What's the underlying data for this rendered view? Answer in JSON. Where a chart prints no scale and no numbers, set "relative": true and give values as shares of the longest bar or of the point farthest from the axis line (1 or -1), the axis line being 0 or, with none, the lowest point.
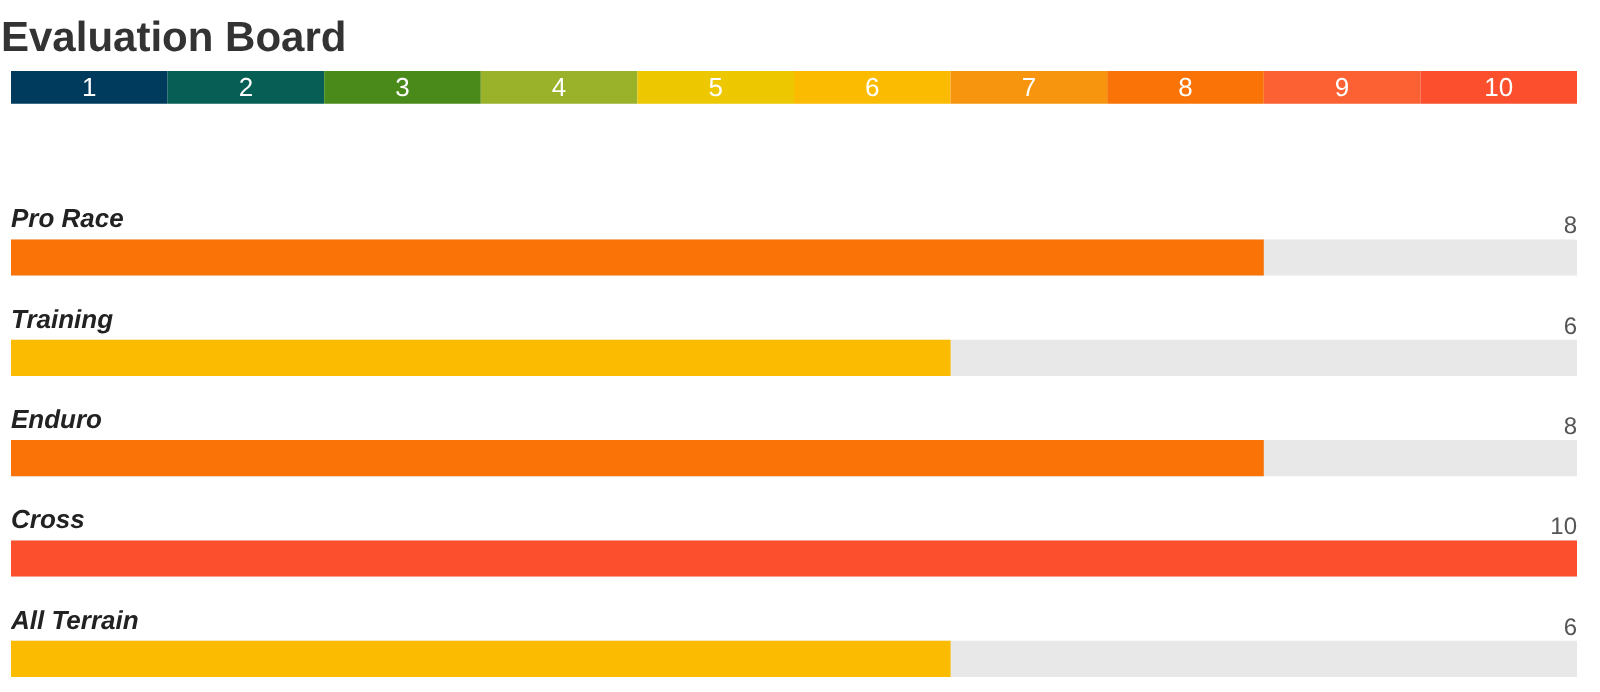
{
  "chart_data": [
    {
      "type": "bar",
      "title": "Evaluation Board",
      "categories": [
        "1",
        "2",
        "3",
        "4",
        "5",
        "6",
        "7",
        "8",
        "9",
        "10"
      ],
      "values": [
        1,
        1,
        1,
        1,
        1,
        1,
        1,
        1,
        1,
        1
      ],
      "relative": true,
      "colors": [
        "#003a5c",
        "#075e55",
        "#4a8a1a",
        "#9ab12a",
        "#edc700",
        "#fbbb00",
        "#f7960e",
        "#f97306",
        "#fb6132",
        "#fb4f2e"
      ]
    },
    {
      "type": "bar",
      "orientation": "horizontal",
      "categories": [
        "Pro Race",
        "Training",
        "Enduro",
        "Cross",
        "All Terrain"
      ],
      "values": [
        8,
        6,
        8,
        10,
        6
      ],
      "colors": [
        "#f97306",
        "#fbbb00",
        "#f97306",
        "#fb4f2e",
        "#fbbb00"
      ],
      "xlim": [
        0,
        10
      ],
      "tick_labels": false,
      "data_labels": true
    }
  ]
}
